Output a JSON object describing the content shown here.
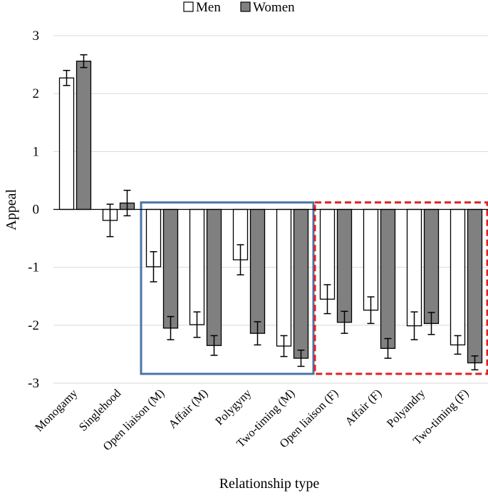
{
  "chart_data": {
    "type": "bar",
    "title": "",
    "xlabel": "Relationship type",
    "ylabel": "Appeal",
    "ylim": [
      -3,
      3
    ],
    "yticks": [
      3,
      2,
      1,
      0,
      -1,
      -2,
      -3
    ],
    "grid": true,
    "legend_position": "top-center",
    "categories": [
      "Monogamy",
      "Singlehood",
      "Open liaison (M)",
      "Affair (M)",
      "Polygyny",
      "Two-timing (M)",
      "Open liaison (F)",
      "Affair (F)",
      "Polyandry",
      "Two-timing (F)"
    ],
    "series": [
      {
        "name": "Men",
        "color": "#ffffff",
        "values": [
          2.27,
          -0.19,
          -0.99,
          -1.99,
          -0.87,
          -2.36,
          -1.55,
          -1.74,
          -2.01,
          -2.34
        ],
        "error": [
          0.13,
          0.28,
          0.26,
          0.22,
          0.26,
          0.18,
          0.25,
          0.23,
          0.24,
          0.16
        ]
      },
      {
        "name": "Women",
        "color": "#808080",
        "values": [
          2.56,
          0.11,
          -2.05,
          -2.35,
          -2.14,
          -2.57,
          -1.95,
          -2.4,
          -1.97,
          -2.65
        ],
        "error": [
          0.11,
          0.22,
          0.2,
          0.17,
          0.2,
          0.14,
          0.19,
          0.17,
          0.19,
          0.12
        ]
      }
    ],
    "annotations": [
      {
        "kind": "solid-box",
        "color": "#4a74a8",
        "covers_categories": [
          2,
          5
        ],
        "y_range": [
          0.12,
          -2.84
        ]
      },
      {
        "kind": "dashed-box",
        "color": "#e02020",
        "covers_categories": [
          6,
          9
        ],
        "y_range": [
          0.12,
          -2.84
        ]
      }
    ]
  }
}
